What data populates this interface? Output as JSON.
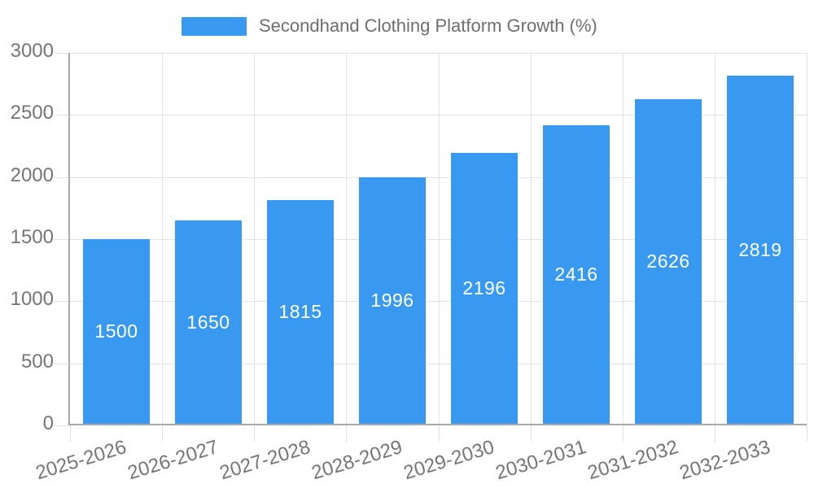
{
  "legend": {
    "label": "Secondhand Clothing Platform Growth (%)"
  },
  "chart_data": {
    "type": "bar",
    "title": "Secondhand Clothing Platform Growth (%)",
    "categories": [
      "2025-2026",
      "2026-2027",
      "2027-2028",
      "2028-2029",
      "2029-2030",
      "2030-2031",
      "2031-2032",
      "2032-2033"
    ],
    "values": [
      1500,
      1650,
      1815,
      1996,
      2196,
      2416,
      2626,
      2819
    ],
    "xlabel": "",
    "ylabel": "",
    "ylim": [
      0,
      3000
    ],
    "yticks": [
      0,
      500,
      1000,
      1500,
      2000,
      2500,
      3000
    ],
    "grid": true,
    "legend_position": "top",
    "value_label_position": "inside-center",
    "colors": {
      "bar": "#3999F0",
      "grid": "#E3E3E3",
      "tick": "#E0E0E0",
      "axis": "#A9A9A9",
      "tick_text": "#757575",
      "legend_text": "#6E6E6E",
      "value_label": "#FFFFFF",
      "background": "#FFFFFF"
    }
  }
}
